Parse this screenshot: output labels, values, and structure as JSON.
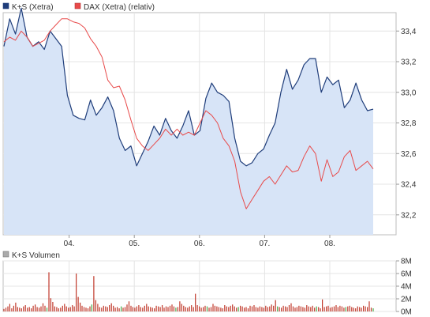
{
  "chart_data": [
    {
      "type": "line",
      "title": "",
      "legend_placement": "top-left",
      "grid": true,
      "x_ticks": [
        "04.",
        "05.",
        "06.",
        "07.",
        "08."
      ],
      "y_ticks": [
        "32,2",
        "32,4",
        "32,6",
        "32,8",
        "33,0",
        "33,2",
        "33,4"
      ],
      "y_axis_side": "right",
      "ylim": [
        32.07,
        33.52
      ],
      "colors": {
        "primary": "#1f3d7a",
        "primary_fill": "#d7e4f7",
        "secondary": "#e84a4a",
        "grid": "#e4e4e4"
      },
      "series": [
        {
          "name": "K+S (Xetra)",
          "color": "#1f3d7a",
          "area_fill": true,
          "values": [
            {
              "x": "03.",
              "y": 33.3
            },
            {
              "x": "03.",
              "y": 33.48
            },
            {
              "x": "03.",
              "y": 33.38
            },
            {
              "x": "03.",
              "y": 33.55
            },
            {
              "x": "03.",
              "y": 33.36
            },
            {
              "x": "03.",
              "y": 33.3
            },
            {
              "x": "03.",
              "y": 33.33
            },
            {
              "x": "03.",
              "y": 33.28
            },
            {
              "x": "03.",
              "y": 33.4
            },
            {
              "x": "03.",
              "y": 33.35
            },
            {
              "x": "03.",
              "y": 33.3
            },
            {
              "x": "03.",
              "y": 32.98
            },
            {
              "x": "04.",
              "y": 32.85
            },
            {
              "x": "04.",
              "y": 32.83
            },
            {
              "x": "04.",
              "y": 32.82
            },
            {
              "x": "04.",
              "y": 32.95
            },
            {
              "x": "04.",
              "y": 32.85
            },
            {
              "x": "04.",
              "y": 32.9
            },
            {
              "x": "04.",
              "y": 32.97
            },
            {
              "x": "04.",
              "y": 32.88
            },
            {
              "x": "04.",
              "y": 32.7
            },
            {
              "x": "04.",
              "y": 32.62
            },
            {
              "x": "04.",
              "y": 32.65
            },
            {
              "x": "04.",
              "y": 32.52
            },
            {
              "x": "05.",
              "y": 32.6
            },
            {
              "x": "05.",
              "y": 32.68
            },
            {
              "x": "05.",
              "y": 32.78
            },
            {
              "x": "05.",
              "y": 32.72
            },
            {
              "x": "05.",
              "y": 32.83
            },
            {
              "x": "05.",
              "y": 32.75
            },
            {
              "x": "05.",
              "y": 32.7
            },
            {
              "x": "05.",
              "y": 32.78
            },
            {
              "x": "05.",
              "y": 32.88
            },
            {
              "x": "05.",
              "y": 32.72
            },
            {
              "x": "06.",
              "y": 32.75
            },
            {
              "x": "06.",
              "y": 32.96
            },
            {
              "x": "06.",
              "y": 33.06
            },
            {
              "x": "06.",
              "y": 33.0
            },
            {
              "x": "06.",
              "y": 32.98
            },
            {
              "x": "06.",
              "y": 32.94
            },
            {
              "x": "06.",
              "y": 32.7
            },
            {
              "x": "06.",
              "y": 32.55
            },
            {
              "x": "06.",
              "y": 32.52
            },
            {
              "x": "06.",
              "y": 32.54
            },
            {
              "x": "07.",
              "y": 32.6
            },
            {
              "x": "07.",
              "y": 32.63
            },
            {
              "x": "07.",
              "y": 32.72
            },
            {
              "x": "07.",
              "y": 32.8
            },
            {
              "x": "07.",
              "y": 33.0
            },
            {
              "x": "07.",
              "y": 33.15
            },
            {
              "x": "07.",
              "y": 33.02
            },
            {
              "x": "07.",
              "y": 33.08
            },
            {
              "x": "07.",
              "y": 33.18
            },
            {
              "x": "07.",
              "y": 33.22
            },
            {
              "x": "08.",
              "y": 33.22
            },
            {
              "x": "08.",
              "y": 33.0
            },
            {
              "x": "08.",
              "y": 33.1
            },
            {
              "x": "08.",
              "y": 33.05
            },
            {
              "x": "08.",
              "y": 33.08
            },
            {
              "x": "08.",
              "y": 32.9
            },
            {
              "x": "08.",
              "y": 32.95
            },
            {
              "x": "08.",
              "y": 33.06
            },
            {
              "x": "08.",
              "y": 32.95
            },
            {
              "x": "08.",
              "y": 32.88
            },
            {
              "x": "08.",
              "y": 32.89
            }
          ]
        },
        {
          "name": "DAX (Xetra) (relativ)",
          "color": "#e84a4a",
          "area_fill": false,
          "values": [
            {
              "x": "03.",
              "y": 33.33
            },
            {
              "x": "03.",
              "y": 33.36
            },
            {
              "x": "03.",
              "y": 33.34
            },
            {
              "x": "03.",
              "y": 33.4
            },
            {
              "x": "03.",
              "y": 33.36
            },
            {
              "x": "03.",
              "y": 33.3
            },
            {
              "x": "03.",
              "y": 33.32
            },
            {
              "x": "03.",
              "y": 33.34
            },
            {
              "x": "03.",
              "y": 33.4
            },
            {
              "x": "03.",
              "y": 33.44
            },
            {
              "x": "03.",
              "y": 33.48
            },
            {
              "x": "03.",
              "y": 33.48
            },
            {
              "x": "04.",
              "y": 33.46
            },
            {
              "x": "04.",
              "y": 33.45
            },
            {
              "x": "04.",
              "y": 33.42
            },
            {
              "x": "04.",
              "y": 33.35
            },
            {
              "x": "04.",
              "y": 33.3
            },
            {
              "x": "04.",
              "y": 33.23
            },
            {
              "x": "04.",
              "y": 33.08
            },
            {
              "x": "04.",
              "y": 33.03
            },
            {
              "x": "04.",
              "y": 33.04
            },
            {
              "x": "04.",
              "y": 32.95
            },
            {
              "x": "04.",
              "y": 32.82
            },
            {
              "x": "04.",
              "y": 32.7
            },
            {
              "x": "05.",
              "y": 32.65
            },
            {
              "x": "05.",
              "y": 32.62
            },
            {
              "x": "05.",
              "y": 32.66
            },
            {
              "x": "05.",
              "y": 32.7
            },
            {
              "x": "05.",
              "y": 32.76
            },
            {
              "x": "05.",
              "y": 32.72
            },
            {
              "x": "05.",
              "y": 32.76
            },
            {
              "x": "05.",
              "y": 32.72
            },
            {
              "x": "05.",
              "y": 32.74
            },
            {
              "x": "05.",
              "y": 32.72
            },
            {
              "x": "06.",
              "y": 32.8
            },
            {
              "x": "06.",
              "y": 32.88
            },
            {
              "x": "06.",
              "y": 32.85
            },
            {
              "x": "06.",
              "y": 32.8
            },
            {
              "x": "06.",
              "y": 32.7
            },
            {
              "x": "06.",
              "y": 32.65
            },
            {
              "x": "06.",
              "y": 32.55
            },
            {
              "x": "06.",
              "y": 32.35
            },
            {
              "x": "06.",
              "y": 32.24
            },
            {
              "x": "06.",
              "y": 32.3
            },
            {
              "x": "07.",
              "y": 32.36
            },
            {
              "x": "07.",
              "y": 32.42
            },
            {
              "x": "07.",
              "y": 32.45
            },
            {
              "x": "07.",
              "y": 32.4
            },
            {
              "x": "07.",
              "y": 32.46
            },
            {
              "x": "07.",
              "y": 32.52
            },
            {
              "x": "07.",
              "y": 32.48
            },
            {
              "x": "07.",
              "y": 32.49
            },
            {
              "x": "07.",
              "y": 32.58
            },
            {
              "x": "07.",
              "y": 32.65
            },
            {
              "x": "08.",
              "y": 32.6
            },
            {
              "x": "08.",
              "y": 32.42
            },
            {
              "x": "08.",
              "y": 32.56
            },
            {
              "x": "08.",
              "y": 32.45
            },
            {
              "x": "08.",
              "y": 32.48
            },
            {
              "x": "08.",
              "y": 32.58
            },
            {
              "x": "08.",
              "y": 32.62
            },
            {
              "x": "08.",
              "y": 32.49
            },
            {
              "x": "08.",
              "y": 32.52
            },
            {
              "x": "08.",
              "y": 32.55
            },
            {
              "x": "08.",
              "y": 32.5
            }
          ]
        }
      ]
    },
    {
      "type": "bar",
      "title": "",
      "legend_placement": "top-left",
      "grid": true,
      "y_ticks": [
        "0M",
        "2M",
        "4M",
        "6M",
        "8M"
      ],
      "y_axis_side": "right",
      "ylim": [
        0,
        8
      ],
      "colors": {
        "bar": "#c0392b",
        "bar_highlight": "#4aa84a"
      },
      "series": [
        {
          "name": "K+S Volumen",
          "unit": "M",
          "values": [
            0.4,
            0.6,
            0.8,
            1.2,
            0.5,
            0.9,
            1.4,
            0.7,
            0.6,
            0.5,
            0.8,
            1.0,
            0.6,
            0.7,
            0.5,
            0.9,
            1.1,
            0.7,
            0.6,
            0.8,
            1.3,
            0.9,
            0.6,
            6.2,
            2.1,
            1.5,
            0.8,
            0.7,
            0.5,
            0.6,
            0.9,
            1.2,
            0.8,
            0.6,
            0.7,
            1.0,
            0.8,
            6.0,
            2.3,
            1.4,
            0.9,
            0.7,
            0.6,
            0.5,
            0.8,
            1.1,
            5.6,
            1.8,
            1.2,
            0.7,
            0.6,
            0.9,
            0.8,
            0.7,
            1.0,
            1.3,
            0.9,
            0.6,
            0.7,
            0.5,
            0.8,
            0.6,
            0.7,
            1.1,
            1.6,
            0.9,
            0.7,
            0.6,
            0.8,
            1.0,
            0.7,
            0.6,
            0.9,
            1.2,
            0.8,
            0.7,
            0.6,
            0.5,
            0.9,
            0.8,
            0.7,
            1.0,
            0.6,
            0.8,
            0.7,
            0.9,
            1.1,
            0.8,
            0.6,
            0.7,
            1.6,
            1.2,
            0.9,
            0.7,
            0.6,
            0.8,
            1.0,
            0.7,
            2.8,
            1.0,
            0.8,
            0.6,
            0.7,
            0.9,
            0.8,
            0.6,
            0.7,
            1.2,
            0.9,
            0.8,
            0.7,
            0.6,
            0.5,
            1.0,
            0.8,
            0.7,
            0.9,
            1.1,
            0.8,
            0.6,
            0.7,
            0.9,
            0.8,
            0.6,
            0.7,
            0.5,
            0.9,
            0.8,
            1.0,
            0.7,
            0.6,
            0.8,
            0.7,
            0.6,
            0.9,
            0.7,
            0.8,
            1.1,
            0.9,
            1.8,
            0.8,
            0.7,
            0.6,
            0.9,
            0.8,
            0.7,
            1.0,
            1.3,
            0.8,
            0.6,
            0.7,
            0.9,
            0.8,
            0.7,
            0.6,
            1.0,
            0.8,
            0.7,
            0.9,
            0.6,
            0.8,
            0.7,
            0.5,
            1.9,
            0.7,
            0.8,
            0.9,
            0.6,
            0.7,
            0.8,
            1.0,
            0.7,
            0.9,
            0.8,
            0.6,
            0.7,
            0.8,
            0.9,
            0.7,
            0.6,
            0.5,
            0.8,
            0.7,
            0.6,
            0.9,
            0.8,
            0.7,
            1.6,
            0.6,
            0.5
          ],
          "highlight_indices": [
            22,
            45,
            60,
            88,
            104,
            120,
            140,
            160,
            175,
            189
          ]
        }
      ]
    }
  ]
}
